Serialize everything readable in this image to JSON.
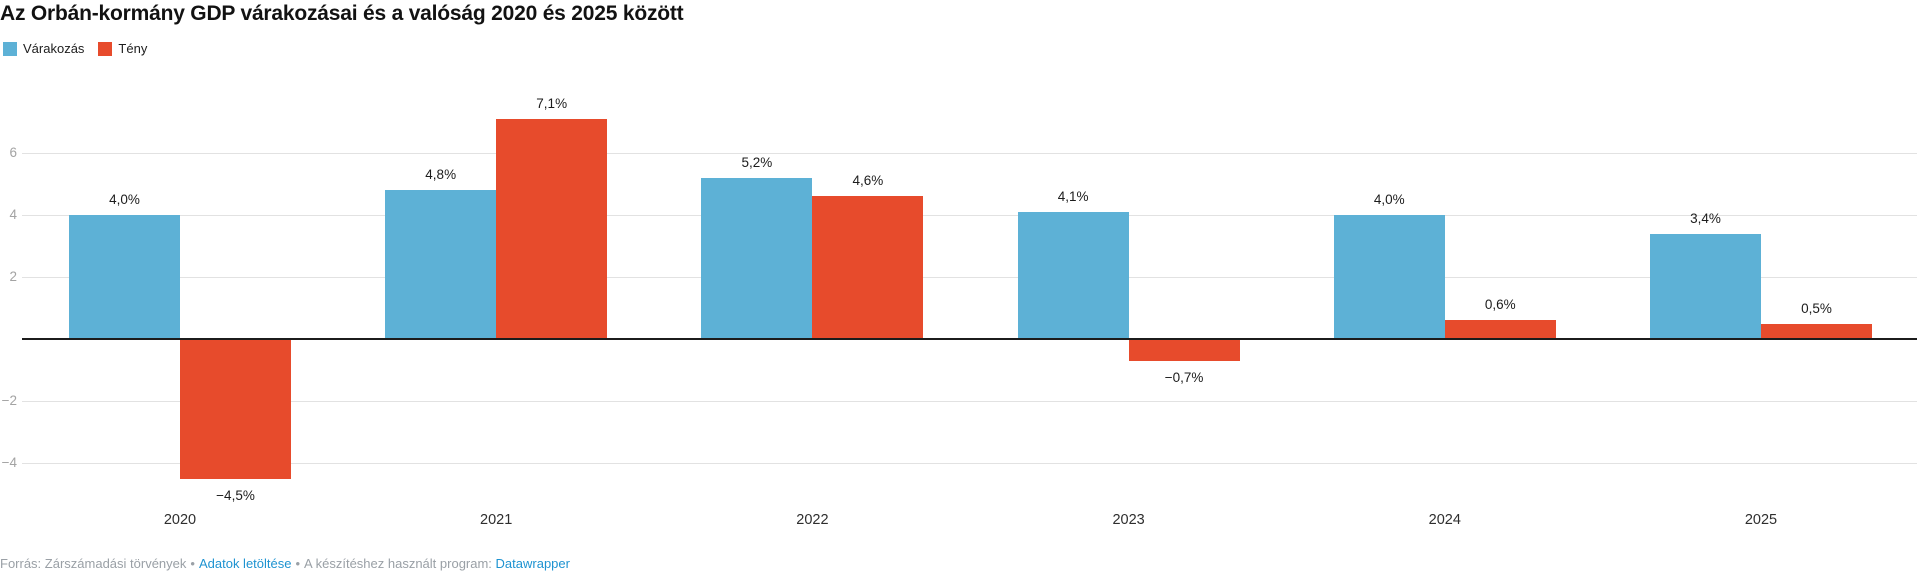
{
  "title": "Az Orbán-kormány GDP várakozásai és a valóság 2020 és 2025 között",
  "footer": {
    "source_text": "Forrás: Zárszámadási törvények",
    "separator": "•",
    "download_label": "Adatok letöltése",
    "program_text": "A készítéshez használt program:",
    "program_link_label": "Datawrapper"
  },
  "colors": {
    "expectation_blue": "#5db1d6",
    "actual_red": "#e74b2c",
    "gridline": "#e2e2e2",
    "zero_line": "#1c1c1c",
    "axis_tick_text": "#a3a3a3",
    "value_label_text": "#1c1c1c",
    "footer_text": "#9aa0a6",
    "link_blue": "#1e93d1"
  },
  "chart_data": {
    "type": "bar",
    "title": "Az Orbán-kormány GDP várakozásai és a valóság 2020 és 2025 között",
    "categories": [
      "2020",
      "2021",
      "2022",
      "2023",
      "2024",
      "2025"
    ],
    "series": [
      {
        "name": "Várakozás",
        "color": "#5db1d6",
        "values": [
          4.0,
          4.8,
          5.2,
          4.1,
          4.0,
          3.4
        ],
        "labels": [
          "4,0%",
          "4,8%",
          "5,2%",
          "4,1%",
          "4,0%",
          "3,4%"
        ]
      },
      {
        "name": "Tény",
        "color": "#e74b2c",
        "values": [
          -4.5,
          7.1,
          4.6,
          -0.7,
          0.6,
          0.5
        ],
        "labels": [
          "−4,5%",
          "7,1%",
          "4,6%",
          "−0,7%",
          "0,6%",
          "0,5%"
        ]
      }
    ],
    "y_ticks": [
      6,
      4,
      2,
      -2,
      -4
    ],
    "y_tick_labels": [
      "6",
      "4",
      "2",
      "−2",
      "−4"
    ],
    "ylim": [
      -5,
      8
    ],
    "xlabel": "",
    "ylabel": "",
    "grid": true,
    "legend_position": "top-left"
  }
}
